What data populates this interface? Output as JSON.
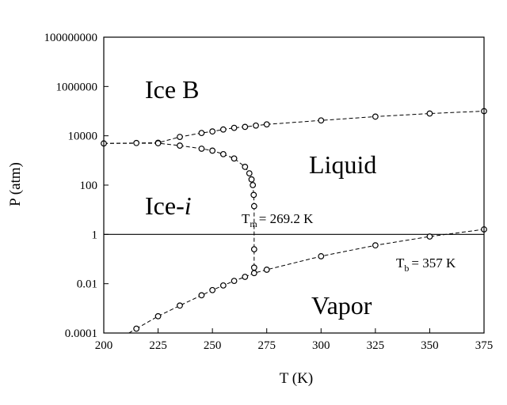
{
  "chart_data": {
    "type": "scatter",
    "title": "",
    "xlabel": "T (K)",
    "ylabel": "P (atm)",
    "xlim": [
      200,
      375
    ],
    "ylim": [
      0.0001,
      100000000
    ],
    "yscale": "log",
    "grid": false,
    "x_ticks": [
      "200",
      "225",
      "250",
      "275",
      "300",
      "325",
      "350",
      "375"
    ],
    "y_ticks": [
      "0.0001",
      "0.01",
      "1",
      "100",
      "10000",
      "1000000",
      "100000000"
    ],
    "reference_line": {
      "y": 1
    },
    "regions": {
      "ice_b": "Ice B",
      "ice_i_prefix": "Ice-",
      "ice_i_suffix": "i",
      "liquid": "Liquid",
      "vapor": "Vapor"
    },
    "annotations": {
      "tm_symbol": "T",
      "tm_sub": "m",
      "tm_value": "= 269.2 K",
      "tb_symbol": "T",
      "tb_sub": "b",
      "tb_value": "= 357 K"
    },
    "series": [
      {
        "points": [
          [
            200,
            4900
          ],
          [
            215,
            5100
          ],
          [
            225,
            5200
          ],
          [
            235,
            9000
          ],
          [
            245,
            13000
          ],
          [
            250,
            15000
          ],
          [
            255,
            18000
          ],
          [
            260,
            21000
          ],
          [
            265,
            23000
          ],
          [
            270,
            26000
          ],
          [
            275,
            29000
          ],
          [
            300,
            42000
          ],
          [
            325,
            60000
          ],
          [
            350,
            80000
          ],
          [
            375,
            100000
          ]
        ]
      },
      {
        "points": [
          [
            200,
            4900
          ],
          [
            225,
            5000
          ],
          [
            235,
            4000
          ],
          [
            245,
            3000
          ],
          [
            250,
            2500
          ],
          [
            255,
            1800
          ],
          [
            260,
            1200
          ],
          [
            265,
            550
          ],
          [
            267,
            300
          ],
          [
            268,
            170
          ],
          [
            268.6,
            100
          ],
          [
            269,
            40
          ],
          [
            269.2,
            14
          ]
        ]
      },
      {
        "points": [
          [
            269.2,
            14
          ],
          [
            269.2,
            0.25
          ],
          [
            269.2,
            0.045
          ],
          [
            269.2,
            0.027
          ]
        ]
      },
      {
        "points": [
          [
            215,
            0.00015
          ],
          [
            225,
            0.00048
          ],
          [
            235,
            0.0013
          ],
          [
            245,
            0.0034
          ],
          [
            250,
            0.0055
          ],
          [
            255,
            0.0085
          ],
          [
            260,
            0.013
          ],
          [
            265,
            0.019
          ],
          [
            269.2,
            0.027
          ],
          [
            275,
            0.037
          ],
          [
            300,
            0.13
          ],
          [
            325,
            0.36
          ],
          [
            350,
            0.82
          ],
          [
            375,
            1.6
          ]
        ]
      }
    ]
  }
}
